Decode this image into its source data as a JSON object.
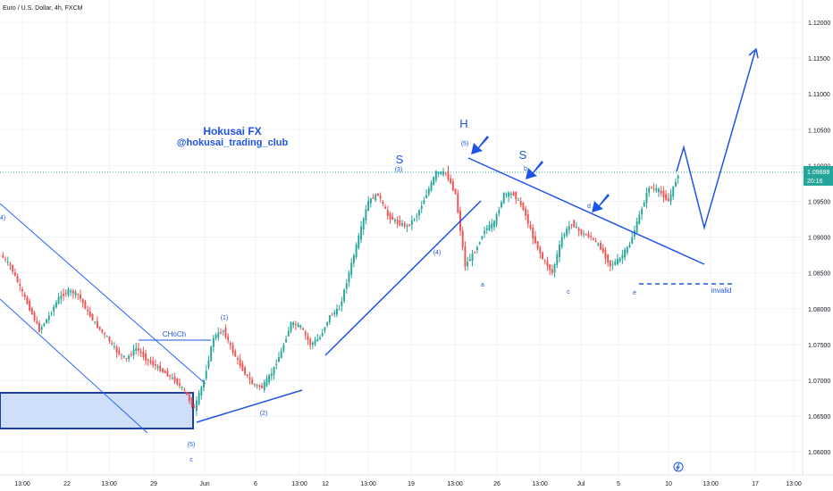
{
  "header": {
    "symbol_title": "Euro / U.S. Dollar, 4h, FXCM"
  },
  "watermark": {
    "line1": "Hokusai FX",
    "line2": "@hokusai_trading_club"
  },
  "price_axis": {
    "ticks": [
      "1.12000",
      "1.11500",
      "1.11000",
      "1.10500",
      "1.10000",
      "1.09500",
      "1.09000",
      "1.08500",
      "1.08000",
      "1.07500",
      "1.07000",
      "1.06500",
      "1.06000"
    ],
    "current_price": "1.09888",
    "countdown": "20:16"
  },
  "time_axis": {
    "ticks": [
      "13:00",
      "22",
      "13:00",
      "29",
      "Jun",
      "6",
      "13:00",
      "12",
      "13:00",
      "19",
      "13:00",
      "26",
      "13:00",
      "Jul",
      "5",
      "10",
      "13:00",
      "17",
      "13:00"
    ]
  },
  "colors": {
    "bull": "#26a69a",
    "bear": "#ef5350",
    "drawing": "#1e53e5",
    "channel": "#2962ff",
    "zone_fill": "#cfdff9",
    "price_line": "#26a69a"
  },
  "annotations": {
    "choch": "CHoCh",
    "invalid": "invalid",
    "head": "H",
    "left_shoulder": "S",
    "right_shoulder": "S",
    "wave_1": "(1)",
    "wave_2": "(2)",
    "wave_3": "(3)",
    "wave_4": "(4)",
    "wave_5_top": "(5)",
    "wave_5_bottom": "(5)",
    "wave_a": "a",
    "wave_b": "b",
    "wave_c_low": "c",
    "wave_c": "c",
    "wave_d": "d",
    "wave_e": "e",
    "left_edge_label": "4)"
  },
  "chart_data": {
    "type": "candlestick",
    "title": "Euro / U.S. Dollar, 4h, FXCM",
    "ylim": [
      1.0575,
      1.1225
    ],
    "x_range": [
      "May 18",
      "Jul 20"
    ],
    "last_price": 1.09888,
    "path_points": [
      [
        1.0875
      ],
      [
        1.086
      ],
      [
        1.083
      ],
      [
        1.08
      ],
      [
        1.077
      ],
      [
        1.079
      ],
      [
        1.0815
      ],
      [
        1.0825
      ],
      [
        1.082
      ],
      [
        1.0795
      ],
      [
        1.0775
      ],
      [
        1.076
      ],
      [
        1.074
      ],
      [
        1.073
      ],
      [
        1.0745
      ],
      [
        1.073
      ],
      [
        1.072
      ],
      [
        1.071
      ],
      [
        1.07
      ],
      [
        1.0685
      ],
      [
        1.066
      ],
      [
        1.07
      ],
      [
        1.076
      ],
      [
        1.077
      ],
      [
        1.074
      ],
      [
        1.0715
      ],
      [
        1.0695
      ],
      [
        1.069
      ],
      [
        1.071
      ],
      [
        1.074
      ],
      [
        1.078
      ],
      [
        1.0775
      ],
      [
        1.075
      ],
      [
        1.076
      ],
      [
        1.079
      ],
      [
        1.08
      ],
      [
        1.085
      ],
      [
        1.09
      ],
      [
        1.095
      ],
      [
        1.096
      ],
      [
        1.093
      ],
      [
        1.092
      ],
      [
        1.0915
      ],
      [
        1.093
      ],
      [
        1.096
      ],
      [
        1.099
      ],
      [
        1.099
      ],
      [
        1.096
      ],
      [
        1.086
      ],
      [
        1.088
      ],
      [
        1.091
      ],
      [
        1.092
      ],
      [
        1.096
      ],
      [
        1.096
      ],
      [
        1.094
      ],
      [
        1.09
      ],
      [
        1.087
      ],
      [
        1.085
      ],
      [
        1.09
      ],
      [
        1.092
      ],
      [
        1.0905
      ],
      [
        1.09
      ],
      [
        1.0885
      ],
      [
        1.086
      ],
      [
        1.087
      ],
      [
        1.089
      ],
      [
        1.093
      ],
      [
        1.097
      ],
      [
        1.0965
      ],
      [
        1.095
      ],
      [
        1.0988
      ]
    ],
    "projection": [
      1.0988,
      1.1025,
      1.0915,
      1.1165
    ],
    "zones": [
      {
        "name": "demand-zone",
        "from": 1.068,
        "to": 1.0635
      }
    ],
    "levels": [
      {
        "name": "invalidation",
        "value": 1.0833
      },
      {
        "name": "choch",
        "value": 1.0758
      }
    ]
  }
}
